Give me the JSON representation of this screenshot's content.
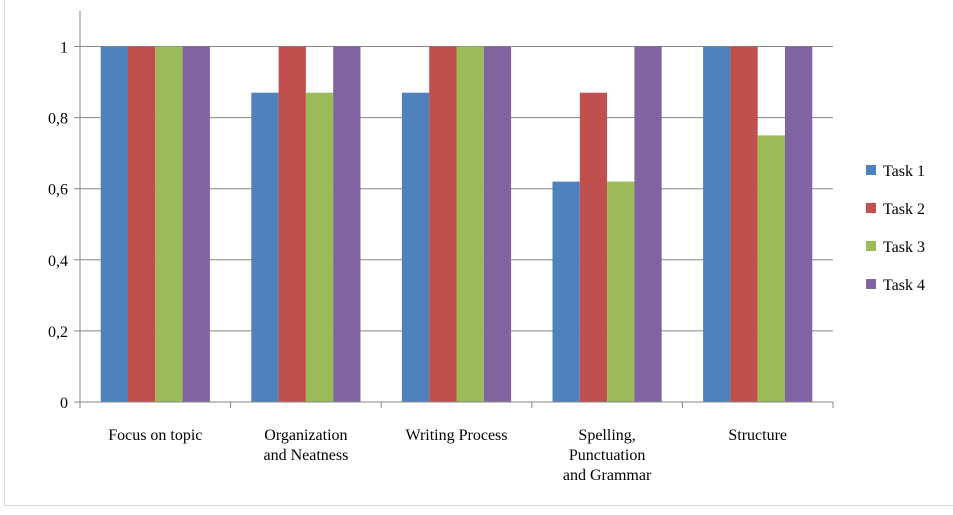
{
  "chart_data": {
    "type": "bar",
    "categories": [
      [
        "Focus on topic"
      ],
      [
        "Organization",
        "and Neatness"
      ],
      [
        "Writing Process"
      ],
      [
        "Spelling,",
        "Punctuation",
        "and Grammar"
      ],
      [
        "Structure"
      ]
    ],
    "series": [
      {
        "name": "Task 1",
        "color": "#4F81BD",
        "values": [
          1,
          0.87,
          0.87,
          0.62,
          1
        ]
      },
      {
        "name": "Task 2",
        "color": "#C0504D",
        "values": [
          1,
          1,
          1,
          0.87,
          1
        ]
      },
      {
        "name": "Task 3",
        "color": "#9BBB59",
        "values": [
          1,
          0.87,
          1,
          0.62,
          0.75
        ]
      },
      {
        "name": "Task 4",
        "color": "#8064A2",
        "values": [
          1,
          1,
          1,
          1,
          1
        ]
      }
    ],
    "yticks": [
      0,
      0.2,
      0.4,
      0.6,
      0.8,
      1
    ],
    "ytick_labels": [
      "0",
      "0,2",
      "0,4",
      "0,6",
      "0,8",
      "1"
    ],
    "ylim": [
      0,
      1.1
    ],
    "grid": true,
    "legend_position": "right",
    "title": "",
    "xlabel": "",
    "ylabel": ""
  }
}
